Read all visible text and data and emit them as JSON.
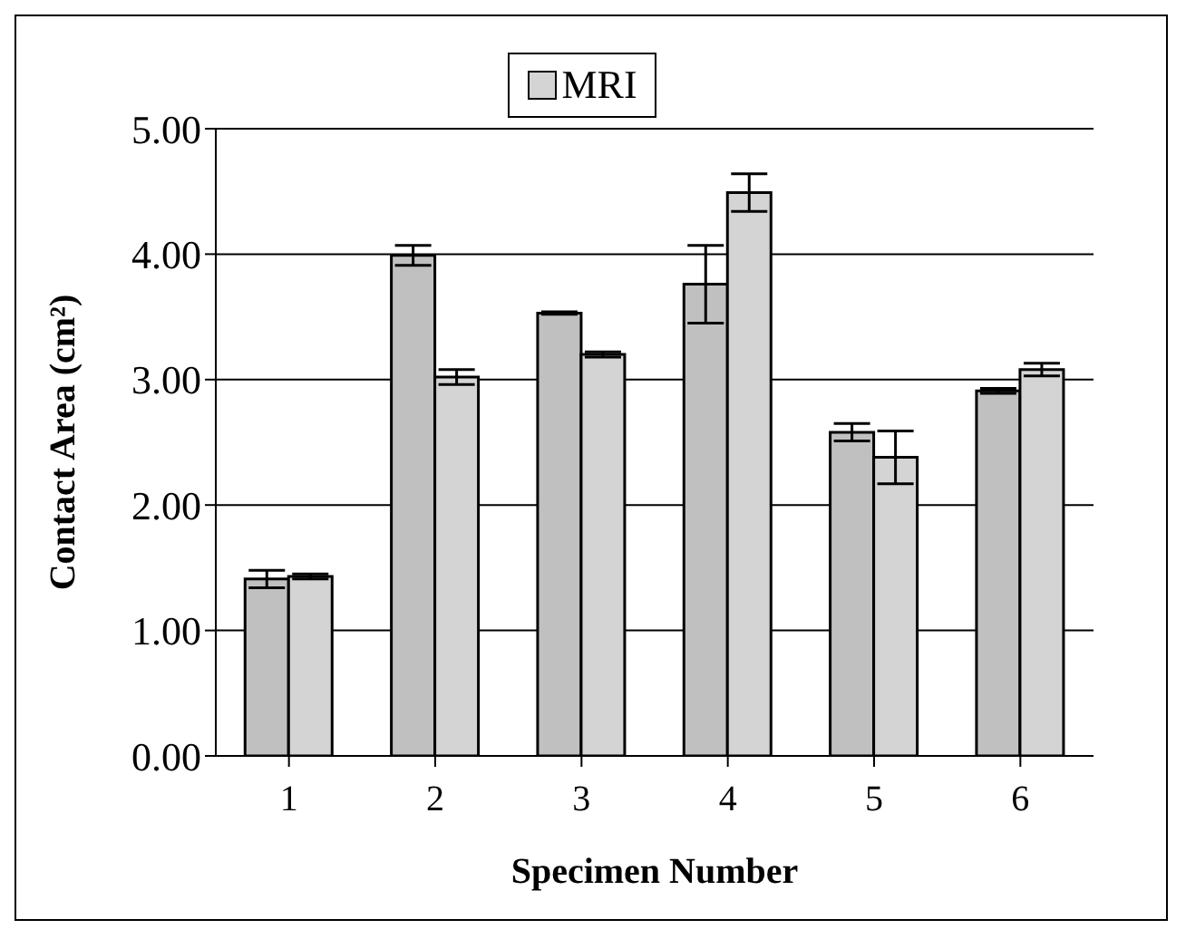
{
  "chart_data": {
    "type": "bar",
    "xlabel": "Specimen Number",
    "ylabel": "Contact Area (cm²)",
    "categories": [
      "1",
      "2",
      "3",
      "4",
      "5",
      "6"
    ],
    "series": [
      {
        "color": "#c0c0c0",
        "values": [
          1.41,
          3.99,
          3.53,
          3.76,
          2.58,
          2.91
        ],
        "errors": [
          0.07,
          0.08,
          0.01,
          0.31,
          0.07,
          0.02
        ]
      },
      {
        "name": "MRI",
        "color": "#d4d4d4",
        "values": [
          1.43,
          3.02,
          3.2,
          4.49,
          2.38,
          3.08
        ],
        "errors": [
          0.02,
          0.06,
          0.02,
          0.15,
          0.21,
          0.05
        ]
      }
    ],
    "ylim": [
      0,
      5
    ],
    "yticks": [
      {
        "value": 0,
        "label": "0.00"
      },
      {
        "value": 1,
        "label": "1.00"
      },
      {
        "value": 2,
        "label": "2.00"
      },
      {
        "value": 3,
        "label": "3.00"
      },
      {
        "value": 4,
        "label": "4.00"
      },
      {
        "value": 5,
        "label": "5.00"
      }
    ],
    "grid": "y",
    "legend": "top"
  }
}
